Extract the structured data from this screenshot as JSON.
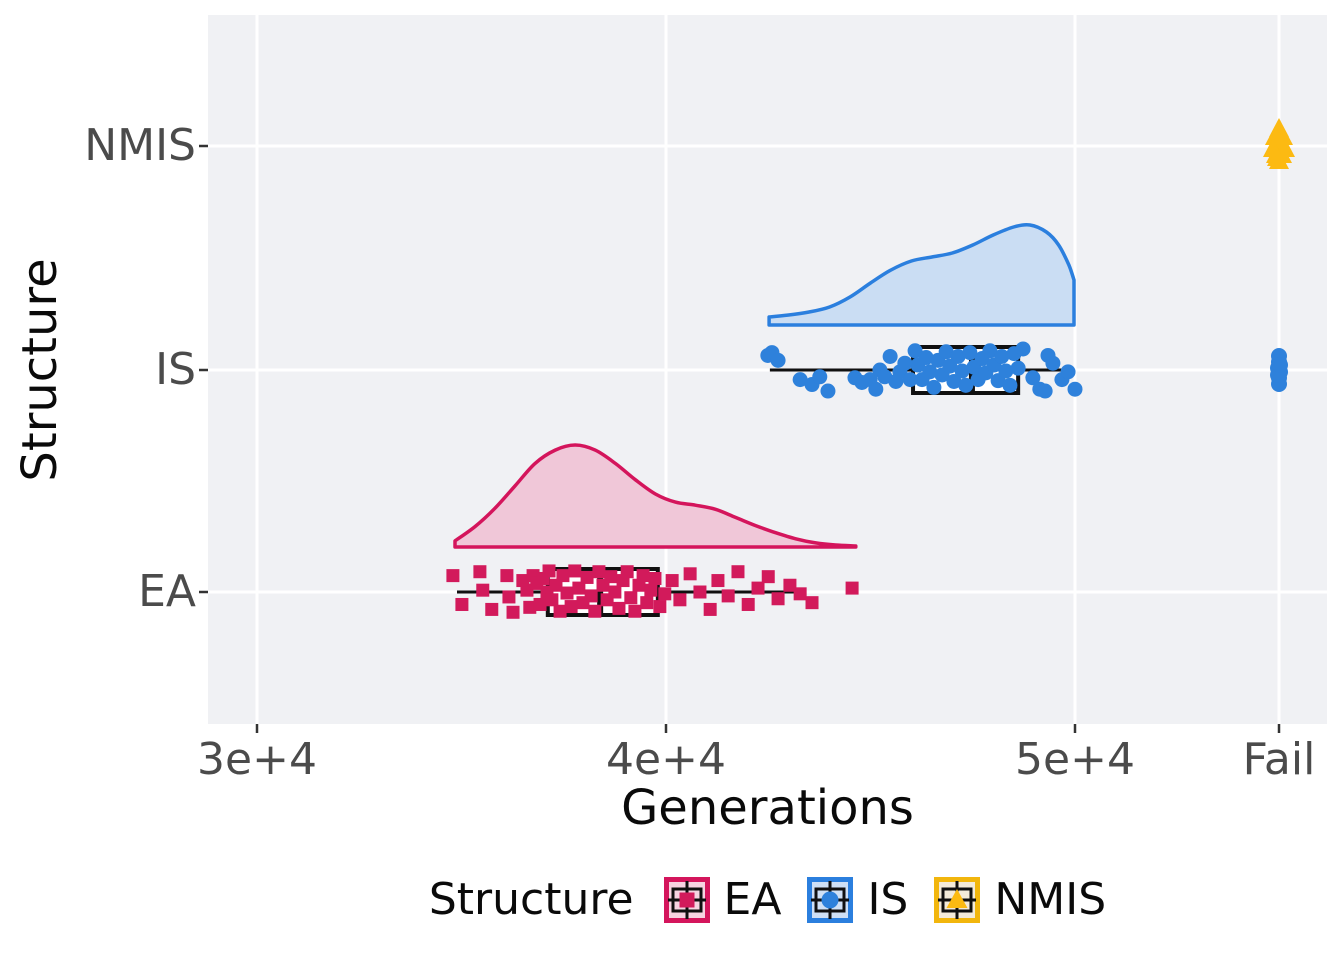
{
  "chart_data": {
    "type": "raincloud (half-violin + boxplot + jittered points)",
    "title": "",
    "xlabel": "Generations",
    "ylabel": "Structure",
    "x_axis": {
      "range": [
        28800,
        50700
      ],
      "ticks": [
        {
          "label": "3e+4",
          "value": 30000
        },
        {
          "label": "4e+4",
          "value": 40000
        },
        {
          "label": "5e+4",
          "value": 50000
        },
        {
          "label": "Fail",
          "value": "Fail"
        }
      ]
    },
    "y_categories_top_to_bottom": [
      "NMIS",
      "IS",
      "EA"
    ],
    "legend": {
      "title": "Structure",
      "entries": [
        {
          "label": "EA",
          "marker": "square"
        },
        {
          "label": "IS",
          "marker": "circle"
        },
        {
          "label": "NMIS",
          "marker": "triangle"
        }
      ]
    },
    "series": [
      {
        "name": "EA",
        "marker": "square",
        "boxplot": {
          "whisker_low": 34890,
          "q1": 37110,
          "median": 38390,
          "q3": 39800,
          "whisker_high": 43280,
          "outliers": [
            44550
          ]
        },
        "density": [
          [
            34840,
            0.06
          ],
          [
            35330,
            0.2
          ],
          [
            35820,
            0.38
          ],
          [
            36310,
            0.6
          ],
          [
            36800,
            0.82
          ],
          [
            37290,
            0.95
          ],
          [
            37780,
            1.0
          ],
          [
            38270,
            0.95
          ],
          [
            38760,
            0.82
          ],
          [
            39250,
            0.66
          ],
          [
            39740,
            0.52
          ],
          [
            40230,
            0.44
          ],
          [
            40720,
            0.41
          ],
          [
            41210,
            0.37
          ],
          [
            41700,
            0.29
          ],
          [
            42190,
            0.21
          ],
          [
            42680,
            0.14
          ],
          [
            43170,
            0.08
          ],
          [
            43660,
            0.04
          ],
          [
            44150,
            0.02
          ],
          [
            44640,
            0.01
          ]
        ],
        "points": [
          [
            34790,
            -0.63
          ],
          [
            35010,
            0.48
          ],
          [
            35450,
            -0.78
          ],
          [
            35520,
            -0.07
          ],
          [
            35740,
            0.67
          ],
          [
            36110,
            -0.63
          ],
          [
            36160,
            0.19
          ],
          [
            36260,
            0.78
          ],
          [
            36500,
            -0.44
          ],
          [
            36600,
            -0.07
          ],
          [
            36670,
            0.59
          ],
          [
            36750,
            -0.63
          ],
          [
            36840,
            -0.33
          ],
          [
            36920,
            0.48
          ],
          [
            36990,
            -0.52
          ],
          [
            37090,
            0.0
          ],
          [
            37140,
            -0.81
          ],
          [
            37210,
            0.3
          ],
          [
            37310,
            -0.26
          ],
          [
            37410,
            0.74
          ],
          [
            37480,
            -0.63
          ],
          [
            37580,
            0.04
          ],
          [
            37680,
            0.56
          ],
          [
            37770,
            -0.81
          ],
          [
            37870,
            -0.15
          ],
          [
            37970,
            0.41
          ],
          [
            38070,
            -0.56
          ],
          [
            38170,
            0.15
          ],
          [
            38260,
            0.74
          ],
          [
            38360,
            -0.78
          ],
          [
            38460,
            -0.26
          ],
          [
            38560,
            0.3
          ],
          [
            38650,
            -0.59
          ],
          [
            38750,
            0.0
          ],
          [
            38850,
            0.63
          ],
          [
            38950,
            -0.44
          ],
          [
            39050,
            -0.78
          ],
          [
            39140,
            0.22
          ],
          [
            39240,
            0.74
          ],
          [
            39340,
            -0.26
          ],
          [
            39440,
            -0.63
          ],
          [
            39530,
            0.41
          ],
          [
            39630,
            -0.07
          ],
          [
            39730,
            -0.52
          ],
          [
            39850,
            0.56
          ],
          [
            39970,
            0.07
          ],
          [
            40150,
            -0.44
          ],
          [
            40340,
            0.3
          ],
          [
            40590,
            -0.7
          ],
          [
            40830,
            0.0
          ],
          [
            41080,
            0.67
          ],
          [
            41270,
            -0.44
          ],
          [
            41520,
            0.15
          ],
          [
            41760,
            -0.78
          ],
          [
            42010,
            0.48
          ],
          [
            42250,
            -0.15
          ],
          [
            42500,
            -0.59
          ],
          [
            42740,
            0.26
          ],
          [
            43030,
            -0.26
          ],
          [
            43280,
            0.07
          ],
          [
            43570,
            0.41
          ],
          [
            44550,
            -0.15
          ]
        ],
        "fail_count": 0
      },
      {
        "name": "IS",
        "marker": "circle",
        "boxplot": {
          "whisker_low": 42540,
          "q1": 46040,
          "median": 47480,
          "q3": 48610,
          "whisker_high": 49930,
          "outliers": []
        },
        "density": [
          [
            42520,
            0.08
          ],
          [
            43000,
            0.1
          ],
          [
            43500,
            0.13
          ],
          [
            44000,
            0.18
          ],
          [
            44500,
            0.28
          ],
          [
            45000,
            0.42
          ],
          [
            45500,
            0.55
          ],
          [
            46000,
            0.64
          ],
          [
            46500,
            0.68
          ],
          [
            47000,
            0.72
          ],
          [
            47500,
            0.8
          ],
          [
            48000,
            0.9
          ],
          [
            48500,
            0.98
          ],
          [
            48900,
            1.0
          ],
          [
            49300,
            0.93
          ],
          [
            49600,
            0.8
          ],
          [
            49850,
            0.6
          ],
          [
            49975,
            0.45
          ]
        ],
        "points": [
          [
            42490,
            -0.56
          ],
          [
            42590,
            -0.67
          ],
          [
            42740,
            -0.37
          ],
          [
            43280,
            0.37
          ],
          [
            43570,
            0.56
          ],
          [
            43760,
            0.26
          ],
          [
            43960,
            0.81
          ],
          [
            44620,
            0.3
          ],
          [
            44790,
            0.48
          ],
          [
            44990,
            0.37
          ],
          [
            45130,
            0.74
          ],
          [
            45230,
            0.0
          ],
          [
            45350,
            0.26
          ],
          [
            45480,
            -0.52
          ],
          [
            45620,
            0.44
          ],
          [
            45720,
            0.07
          ],
          [
            45840,
            -0.26
          ],
          [
            45970,
            0.37
          ],
          [
            46090,
            -0.74
          ],
          [
            46160,
            -0.19
          ],
          [
            46260,
            0.37
          ],
          [
            46360,
            -0.48
          ],
          [
            46450,
            0.07
          ],
          [
            46550,
            0.67
          ],
          [
            46650,
            -0.37
          ],
          [
            46750,
            0.19
          ],
          [
            46850,
            -0.7
          ],
          [
            46940,
            -0.15
          ],
          [
            47040,
            0.44
          ],
          [
            47140,
            -0.52
          ],
          [
            47240,
            0.04
          ],
          [
            47330,
            0.59
          ],
          [
            47430,
            -0.67
          ],
          [
            47530,
            -0.11
          ],
          [
            47630,
            0.37
          ],
          [
            47730,
            -0.44
          ],
          [
            47820,
            0.11
          ],
          [
            47920,
            -0.74
          ],
          [
            48020,
            -0.19
          ],
          [
            48120,
            0.41
          ],
          [
            48210,
            -0.52
          ],
          [
            48310,
            0.04
          ],
          [
            48410,
            0.59
          ],
          [
            48510,
            -0.63
          ],
          [
            48610,
            -0.07
          ],
          [
            48730,
            -0.81
          ],
          [
            48970,
            0.3
          ],
          [
            49140,
            0.74
          ],
          [
            49270,
            0.81
          ],
          [
            49340,
            -0.56
          ],
          [
            49460,
            -0.26
          ],
          [
            49680,
            0.37
          ],
          [
            49830,
            0.07
          ],
          [
            50000,
            0.74
          ]
        ],
        "fail_count": 8
      },
      {
        "name": "NMIS",
        "marker": "triangle",
        "boxplot": null,
        "density": [],
        "points": [],
        "fail_count": 10
      }
    ]
  },
  "colors": {
    "background": "#FFFFFF",
    "panel_background": "#F0F1F4",
    "gridline": "#FFFFFF",
    "tick_text": "#4B4B4B",
    "axis_title_text": "#0A0A0A",
    "box_outline": "#101010",
    "EA": {
      "stroke": "#D4155C",
      "violin_fill": "#F0C7D8",
      "point": "#D21A5B",
      "key_bg": "#F6D3E1"
    },
    "IS": {
      "stroke": "#2B7FDE",
      "violin_fill": "#CADDF3",
      "point": "#2E81DB",
      "key_bg": "#CFE0F5"
    },
    "NMIS": {
      "stroke": "#F2B60D",
      "violin_fill": "#F7E9C8",
      "point": "#FCBA12",
      "key_bg": "#F3EAD9"
    }
  }
}
